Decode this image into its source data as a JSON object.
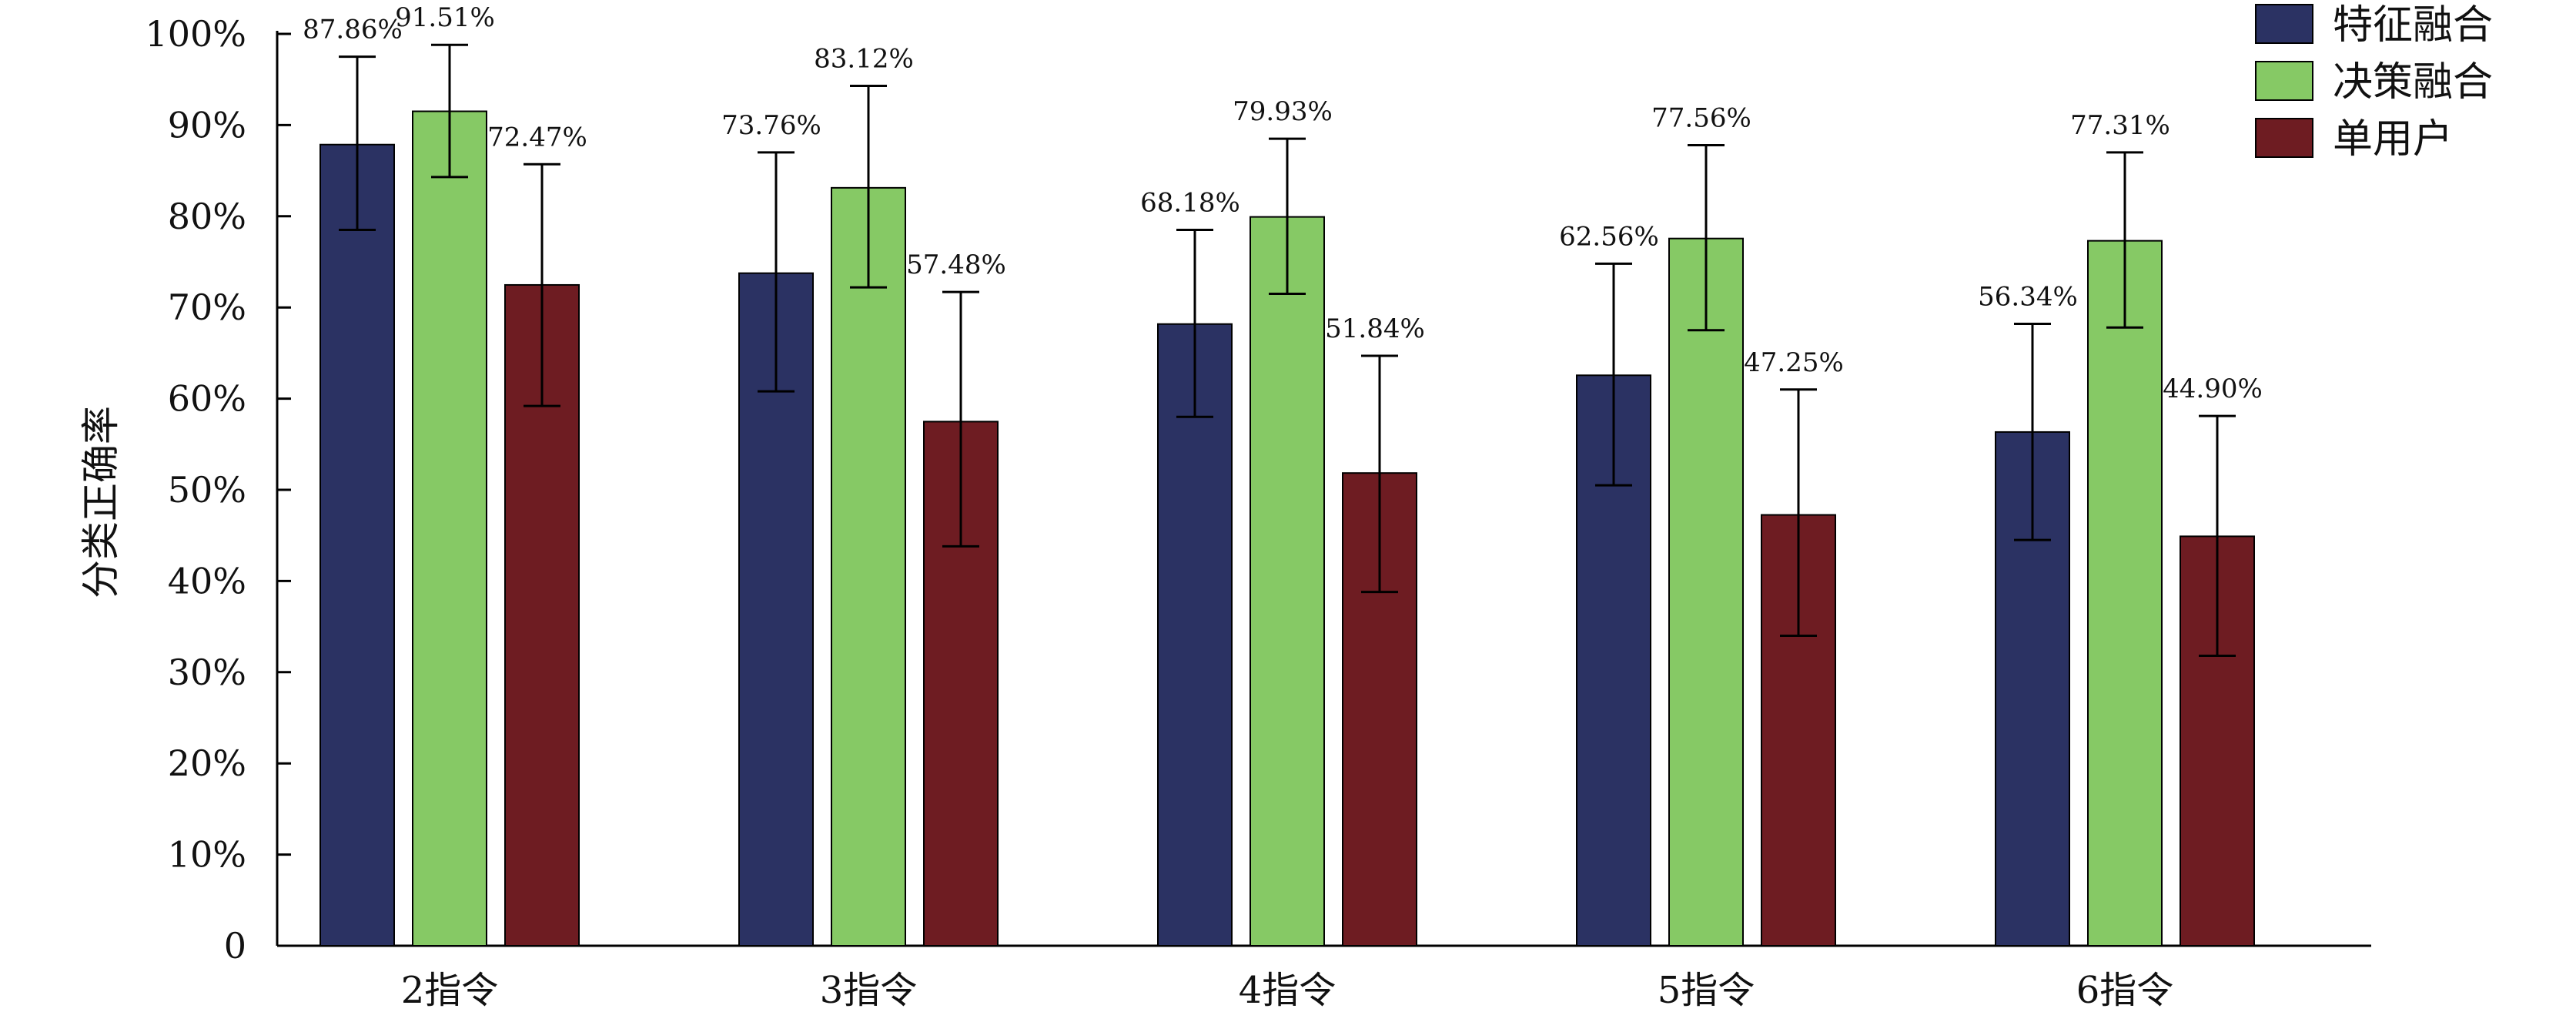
{
  "chart_data": {
    "type": "bar",
    "categories": [
      "2指令",
      "3指令",
      "4指令",
      "5指令",
      "6指令"
    ],
    "series": [
      {
        "name": "特征融合",
        "color": "#2b3263",
        "values": [
          87.86,
          73.76,
          68.18,
          62.56,
          56.34
        ],
        "labels": [
          "87.86%",
          "73.76%",
          "68.18%",
          "62.56%",
          "56.34%"
        ],
        "err_low": [
          78.5,
          60.8,
          58.0,
          50.5,
          44.5
        ],
        "err_high": [
          97.5,
          87.0,
          78.5,
          74.8,
          68.2
        ]
      },
      {
        "name": "决策融合",
        "color": "#86c965",
        "values": [
          91.51,
          83.12,
          79.93,
          77.56,
          77.31
        ],
        "labels": [
          "91.51%",
          "83.12%",
          "79.93%",
          "77.56%",
          "77.31%"
        ],
        "err_low": [
          84.3,
          72.2,
          71.5,
          67.5,
          67.8
        ],
        "err_high": [
          98.8,
          94.3,
          88.5,
          87.8,
          87.0
        ]
      },
      {
        "name": "单用户",
        "color": "#6e1c22",
        "values": [
          72.47,
          57.48,
          51.84,
          47.25,
          44.9
        ],
        "labels": [
          "72.47%",
          "57.48%",
          "51.84%",
          "47.25%",
          "44.90%"
        ],
        "err_low": [
          59.2,
          43.8,
          38.8,
          34.0,
          31.8
        ],
        "err_high": [
          85.7,
          71.7,
          64.7,
          61.0,
          58.1
        ]
      }
    ],
    "ylabel": "分类正确率",
    "ylim": [
      0,
      100
    ],
    "yticks": [
      "0",
      "10%",
      "20%",
      "30%",
      "40%",
      "50%",
      "60%",
      "70%",
      "80%",
      "90%",
      "100%"
    ],
    "grid": false,
    "legend_position": "top-right"
  }
}
